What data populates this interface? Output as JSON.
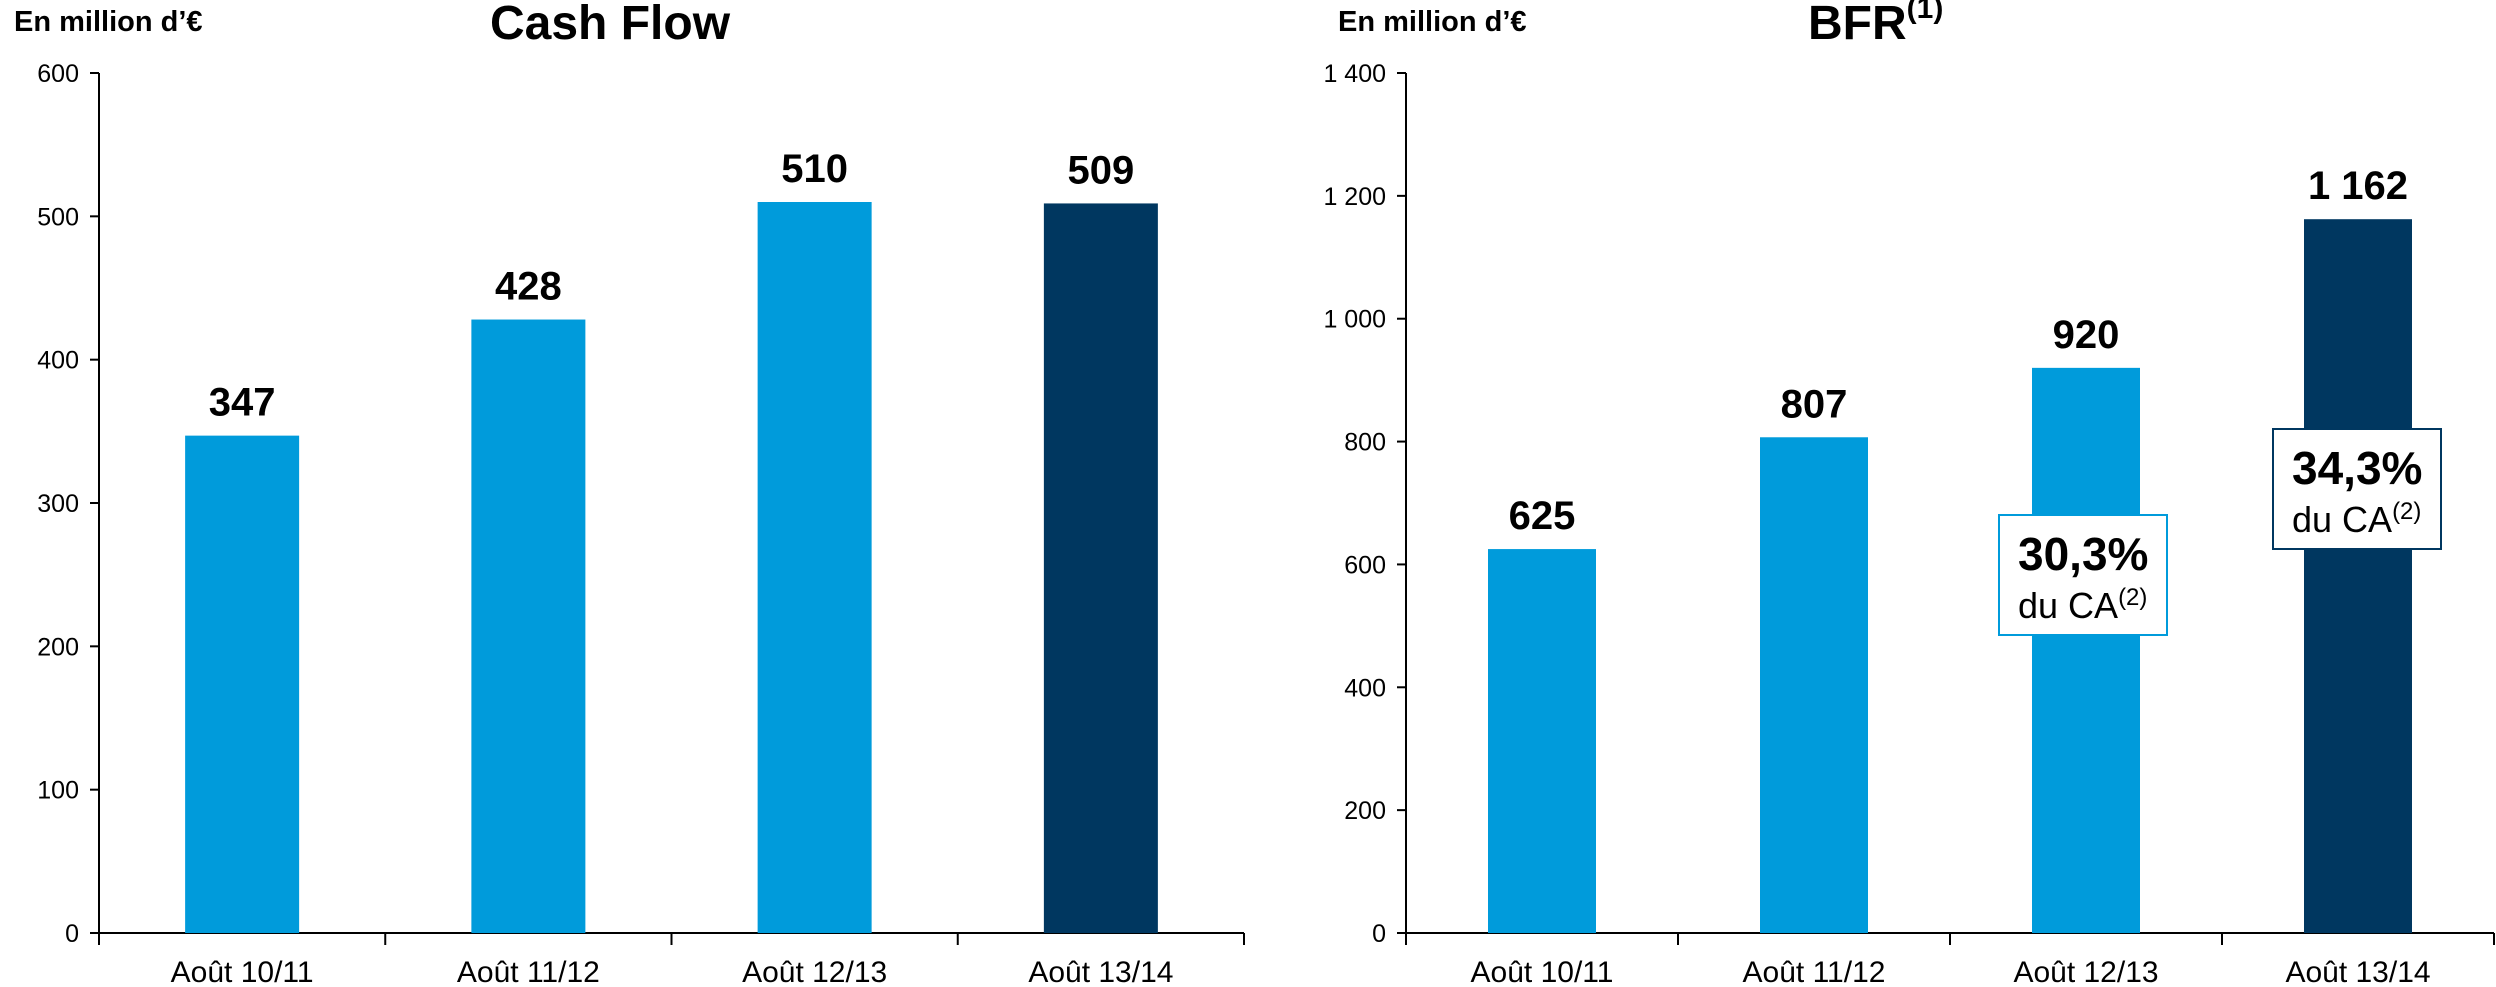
{
  "chart_data": [
    {
      "type": "bar",
      "title": "Cash Flow",
      "unit_label": "En million d’€",
      "categories": [
        "Août 10/11",
        "Août 11/12",
        "Août 12/13",
        "Août 13/14"
      ],
      "values": [
        347,
        428,
        510,
        509
      ],
      "value_labels": [
        "347",
        "428",
        "510",
        "509"
      ],
      "yticks": [
        0,
        100,
        200,
        300,
        400,
        500,
        600
      ],
      "ytick_labels": [
        "0",
        "100",
        "200",
        "300",
        "400",
        "500",
        "600"
      ],
      "ylim": [
        0,
        600
      ],
      "bar_colors": [
        "#009bdb",
        "#009bdb",
        "#009bdb",
        "#003760"
      ],
      "grid": false
    },
    {
      "type": "bar",
      "title": "BFR",
      "title_sup": "(1)",
      "unit_label": "En million d’€",
      "categories": [
        "Août 10/11",
        "Août 11/12",
        "Août 12/13",
        "Août 13/14"
      ],
      "values": [
        625,
        807,
        920,
        1162
      ],
      "value_labels": [
        "625",
        "807",
        "920",
        "1 162"
      ],
      "yticks": [
        0,
        200,
        400,
        600,
        800,
        1000,
        1200,
        1400
      ],
      "ytick_labels": [
        "0",
        "200",
        "400",
        "600",
        "800",
        "1 000",
        "1 200",
        "1 400"
      ],
      "ylim": [
        0,
        1400
      ],
      "bar_colors": [
        "#009bdb",
        "#009bdb",
        "#009bdb",
        "#003760"
      ],
      "grid": false,
      "annotations": [
        {
          "category": "Août 12/13",
          "percent": "30,3%",
          "text": "du CA",
          "sup": "(2)",
          "border_color": "#009bdb"
        },
        {
          "category": "Août 13/14",
          "percent": "34,3%",
          "text": "du CA",
          "sup": "(2)",
          "border_color": "#003760"
        }
      ]
    }
  ]
}
